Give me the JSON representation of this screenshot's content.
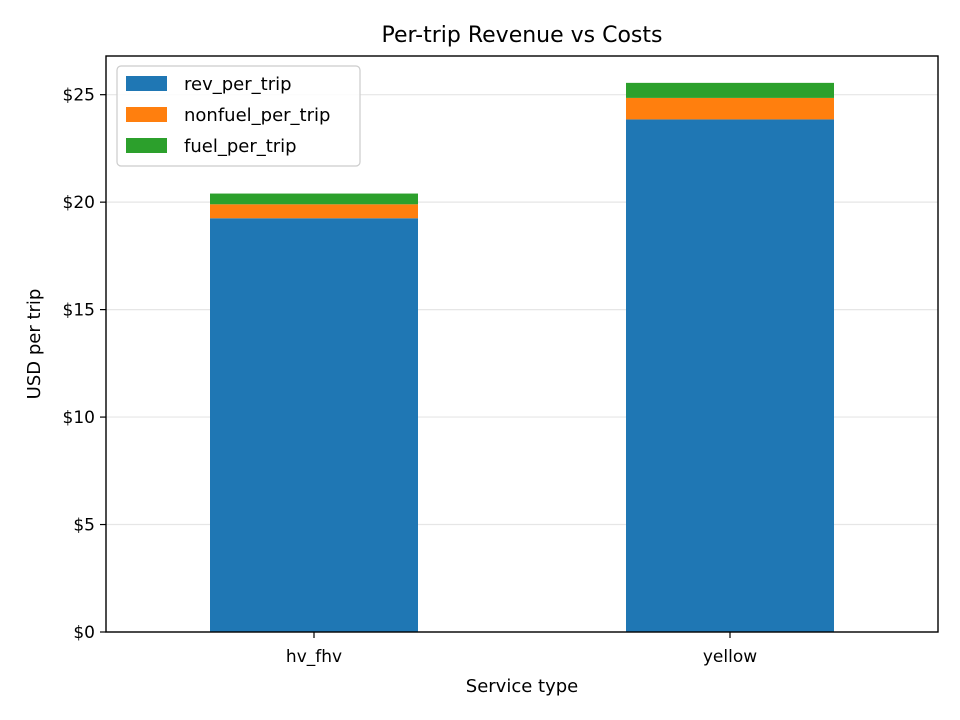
{
  "chart_data": {
    "type": "bar",
    "stacked": true,
    "title": "Per-trip Revenue vs Costs",
    "xlabel": "Service type",
    "ylabel": "USD per trip",
    "categories": [
      "hv_fhv",
      "yellow"
    ],
    "series": [
      {
        "name": "rev_per_trip",
        "color": "#1f77b4",
        "values": [
          19.25,
          23.85
        ]
      },
      {
        "name": "nonfuel_per_trip",
        "color": "#ff7f0e",
        "values": [
          0.65,
          1.0
        ]
      },
      {
        "name": "fuel_per_trip",
        "color": "#2ca02c",
        "values": [
          0.5,
          0.7
        ]
      }
    ],
    "ylim": [
      0,
      26.8
    ],
    "yticks": [
      0,
      5,
      10,
      15,
      20,
      25
    ],
    "ytick_labels": [
      "$0",
      "$5",
      "$10",
      "$15",
      "$20",
      "$25"
    ],
    "grid": "horizontal",
    "legend_position": "top-left"
  }
}
